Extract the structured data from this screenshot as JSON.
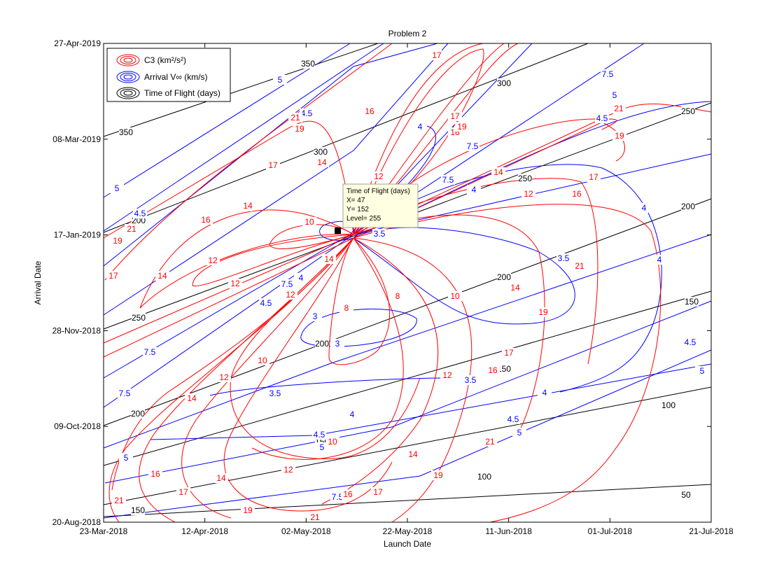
{
  "chart_data": {
    "type": "contour",
    "title": "Problem 2",
    "xlabel": "Launch Date",
    "ylabel": "Arrival Date",
    "x_ticks": [
      "23-Mar-2018",
      "12-Apr-2018",
      "02-May-2018",
      "22-May-2018",
      "11-Jun-2018",
      "01-Jul-2018",
      "21-Jul-2018"
    ],
    "y_ticks": [
      "20-Aug-2018",
      "09-Oct-2018",
      "28-Nov-2018",
      "17-Jan-2019",
      "08-Mar-2019",
      "27-Apr-2019"
    ],
    "xlim": [
      "23-Mar-2018",
      "21-Jul-2018"
    ],
    "ylim": [
      "20-Aug-2018",
      "27-Apr-2019"
    ],
    "legend": {
      "placement": "top-left",
      "entries": [
        {
          "label": "C3 (km²/s²)",
          "color": "#ff0000"
        },
        {
          "label": "Arrival V∞ (km/s)",
          "color": "#0000ff"
        },
        {
          "label": "Time of Flight (days)",
          "color": "#000000"
        }
      ]
    },
    "series": [
      {
        "name": "C3 (km²/s²)",
        "color": "#ff0000",
        "levels": [
          8,
          10,
          12,
          14,
          16,
          17,
          19,
          21
        ]
      },
      {
        "name": "Arrival V∞ (km/s)",
        "color": "#0000ff",
        "levels": [
          3,
          3.5,
          4,
          4.5,
          5,
          7.5
        ]
      },
      {
        "name": "Time of Flight (days)",
        "color": "#000000",
        "levels": [
          50,
          100,
          150,
          200,
          250,
          300,
          350
        ]
      }
    ],
    "datatip": {
      "title": "Time of Flight (days)",
      "x_text": "X= 47",
      "y_text": "Y= 152",
      "level_text": "Level= 255",
      "x": 47,
      "y": 152,
      "level": 255
    }
  }
}
